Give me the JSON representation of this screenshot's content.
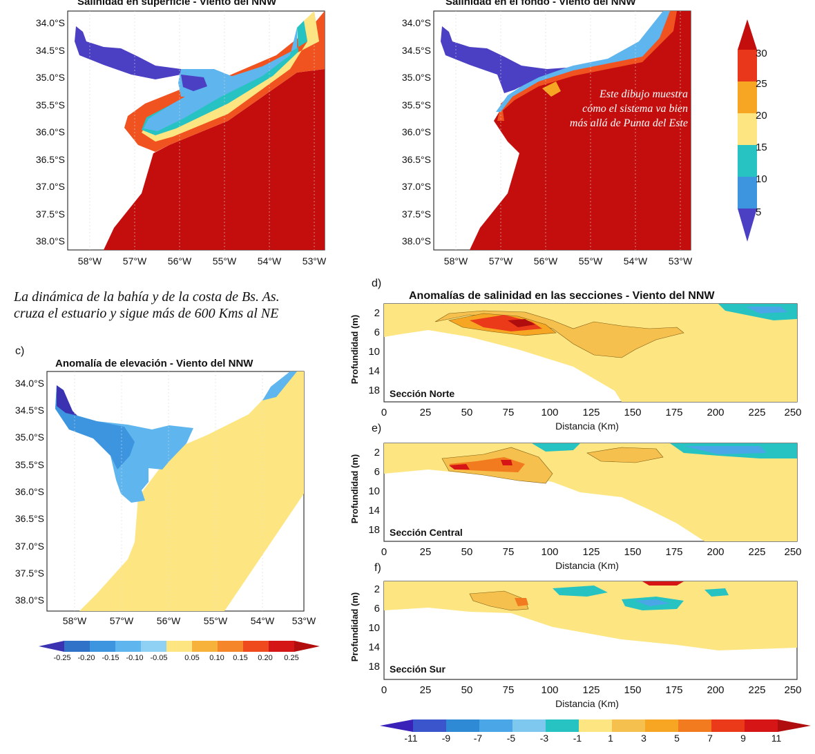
{
  "colors": {
    "ocean_red": "#c40e0e",
    "fresh_purple": "#4b3fc4",
    "cyan": "#27c2c2",
    "light_blue": "#5fb5ee",
    "mid_blue": "#3b8ed6",
    "yellow": "#fde681",
    "orange": "#f6a623",
    "orange_red": "#f0531f",
    "red": "#e21a1a",
    "gridline": "#d8d8d8"
  },
  "panel_a": {
    "title": "Salinidad en superficie - Viento del NNW",
    "lat_ticks": [
      "34.0°S",
      "34.5°S",
      "35.0°S",
      "35.5°S",
      "36.0°S",
      "36.5°S",
      "37.0°S",
      "37.5°S",
      "38.0°S"
    ],
    "lon_ticks": [
      "58°W",
      "57°W",
      "56°W",
      "55°W",
      "54°W",
      "53°W"
    ]
  },
  "panel_b": {
    "title": "Salinidad en el fondo - Viento del NNW",
    "annotation": [
      "Este dibujo muestra",
      "cómo el sistema va bien",
      "más allá de Punta del Este"
    ]
  },
  "salinity_colorbar": {
    "labels": [
      "30",
      "25",
      "20",
      "15",
      "10",
      "5"
    ],
    "colors": [
      "#c40e0e",
      "#e8371b",
      "#f6a623",
      "#fde681",
      "#27c2c2",
      "#3d95e0",
      "#4b3fc4"
    ]
  },
  "caption": [
    "La dinámica de la bahía y de la costa de Bs. As.",
    "cruza el estuario y sigue más de 600 Kms al NE"
  ],
  "panel_c": {
    "letter": "c)",
    "title": "Anomalía de elevación - Viento del NNW",
    "colorbar_labels": [
      "-0.25",
      "-0.20",
      "-0.15",
      "-0.10",
      "-0.05",
      "0.05",
      "0.10",
      "0.15",
      "0.20",
      "0.25"
    ],
    "colorbar_colors": [
      "#3a32b0",
      "#2f72c8",
      "#3d95e0",
      "#5fb5ee",
      "#8fd0f5",
      "#fde681",
      "#f6b23a",
      "#f6862a",
      "#ee4a1e",
      "#d41616",
      "#b30e0e"
    ]
  },
  "sections": {
    "title": "Anomalías de salinidad en las secciones - Viento del NNW",
    "ylabel": "Profundidad (m)",
    "xlabel": "Distancia (Km)",
    "y_ticks": [
      "2",
      "6",
      "10",
      "14",
      "18"
    ],
    "x_ticks": [
      "0",
      "25",
      "50",
      "75",
      "100",
      "125",
      "150",
      "175",
      "200",
      "225",
      "250"
    ],
    "panels": [
      {
        "letter": "d)",
        "name": "Sección Norte"
      },
      {
        "letter": "e)",
        "name": "Sección Central"
      },
      {
        "letter": "f)",
        "name": "Sección Sur"
      }
    ],
    "colorbar_labels": [
      "-11",
      "-9",
      "-7",
      "-5",
      "-3",
      "-1",
      "1",
      "3",
      "5",
      "7",
      "9",
      "11"
    ],
    "colorbar_colors": [
      "#3a22b8",
      "#3b55cc",
      "#2f8ad6",
      "#4aa6e6",
      "#7ec8f0",
      "#27c2c2",
      "#fde681",
      "#f6c04f",
      "#f6a623",
      "#f27a1f",
      "#ea3a1a",
      "#d61616",
      "#b00e0e"
    ]
  }
}
